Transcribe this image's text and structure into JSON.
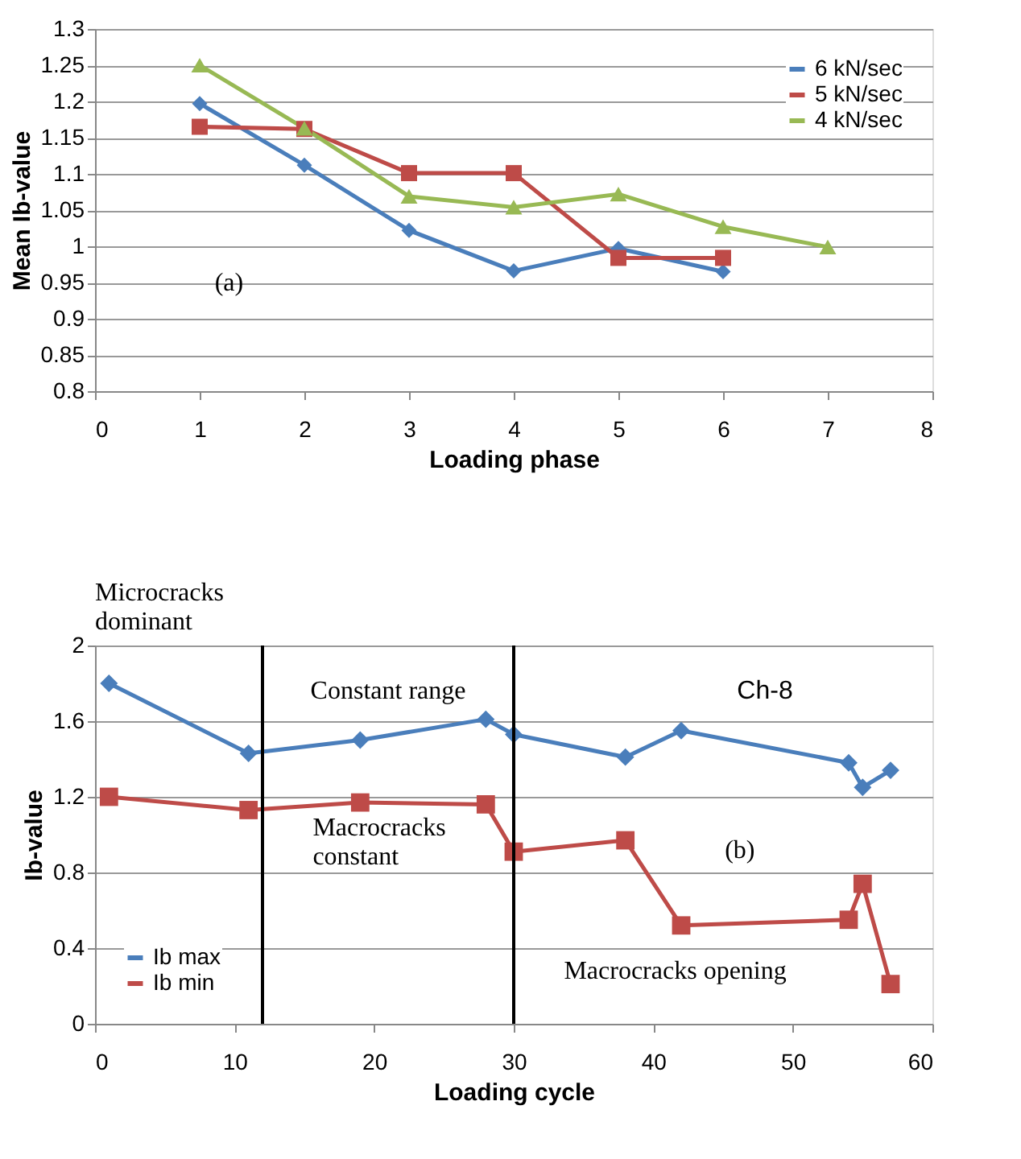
{
  "chart_data": [
    {
      "type": "line",
      "xlabel": "Loading phase",
      "ylabel": "Mean Ib-value",
      "xlim": [
        0,
        8
      ],
      "xticks": [
        0,
        1,
        2,
        3,
        4,
        5,
        6,
        7,
        8
      ],
      "ylim": [
        0.8,
        1.3
      ],
      "yticks": [
        0.8,
        0.85,
        0.9,
        0.95,
        1,
        1.05,
        1.1,
        1.15,
        1.2,
        1.25,
        1.3
      ],
      "grid": "y",
      "legend": "top right",
      "annotations": [
        "(a)"
      ],
      "series": [
        {
          "name": "6 kN/sec",
          "color": "#4a7ebb",
          "marker": "diamond",
          "x": [
            1,
            2,
            3,
            4,
            5,
            6
          ],
          "values": [
            1.197,
            1.112,
            1.022,
            0.966,
            0.997,
            0.965
          ]
        },
        {
          "name": "5 kN/sec",
          "color": "#be4b48",
          "marker": "square",
          "x": [
            1,
            2,
            3,
            4,
            5,
            6
          ],
          "values": [
            1.165,
            1.162,
            1.101,
            1.101,
            0.984,
            0.984
          ]
        },
        {
          "name": "4 kN/sec",
          "color": "#98b954",
          "marker": "triangle",
          "x": [
            1,
            2,
            3,
            4,
            5,
            6,
            7
          ],
          "values": [
            1.25,
            1.163,
            1.069,
            1.054,
            1.072,
            1.027,
            0.999
          ]
        }
      ]
    },
    {
      "type": "line",
      "xlabel": "Loading cycle",
      "ylabel": "Ib-value",
      "xlim": [
        0,
        60
      ],
      "xticks": [
        0,
        10,
        20,
        30,
        40,
        50,
        60
      ],
      "ylim": [
        0,
        2
      ],
      "yticks": [
        0,
        0.4,
        0.8,
        1.2,
        1.6,
        2
      ],
      "grid": "y",
      "legend": "bottom left",
      "annotations": [
        "Microcracks dominant",
        "Constant range",
        "Ch-8",
        "Macrocracks constant",
        "(b)",
        "Macrocracks opening"
      ],
      "ref_lines": [
        {
          "axis": "x",
          "value": 12,
          "color": "#000000"
        },
        {
          "axis": "x",
          "value": 30,
          "color": "#000000"
        }
      ],
      "series": [
        {
          "name": "Ib max",
          "color": "#4a7ebb",
          "marker": "diamond",
          "x": [
            1,
            11,
            19,
            28,
            30,
            38,
            42,
            54,
            55,
            57
          ],
          "values": [
            1.8,
            1.43,
            1.5,
            1.61,
            1.53,
            1.41,
            1.55,
            1.38,
            1.25,
            1.34
          ]
        },
        {
          "name": "Ib min",
          "color": "#be4b48",
          "marker": "square",
          "x": [
            1,
            11,
            19,
            28,
            30,
            38,
            42,
            54,
            55,
            57
          ],
          "values": [
            1.2,
            1.13,
            1.17,
            1.16,
            0.91,
            0.97,
            0.52,
            0.55,
            0.74,
            0.21
          ]
        }
      ]
    }
  ]
}
